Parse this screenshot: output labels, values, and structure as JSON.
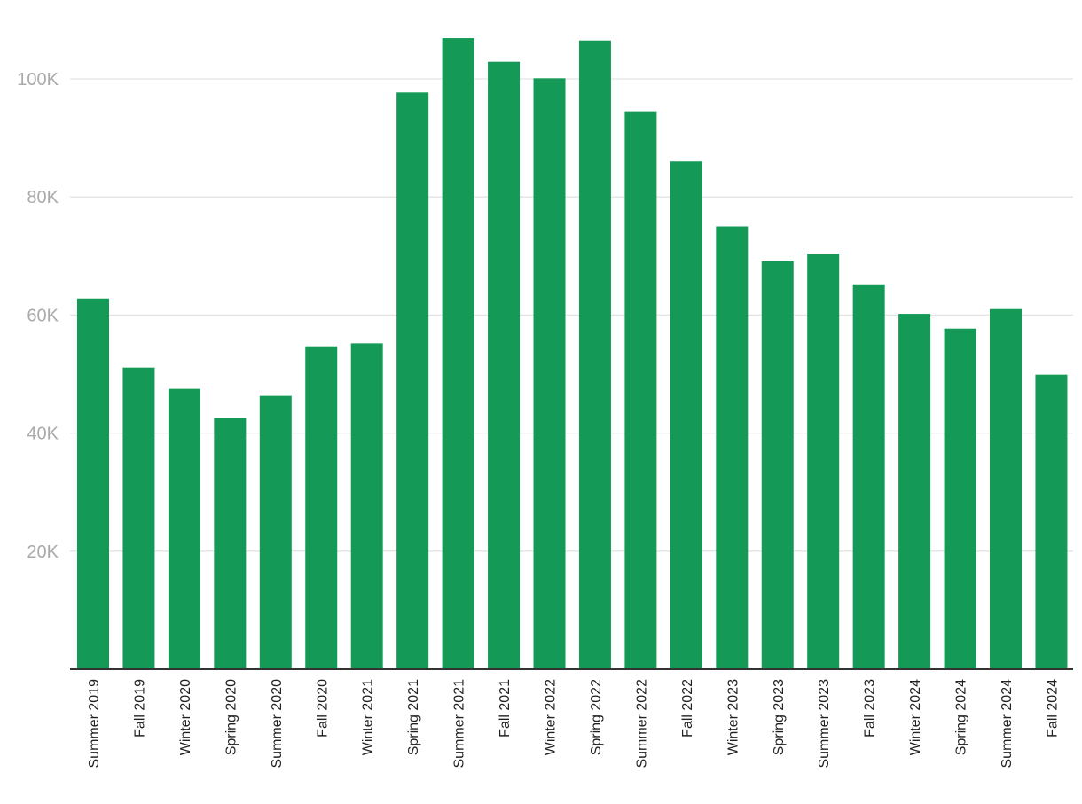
{
  "chart_data": {
    "type": "bar",
    "categories": [
      "Summer 2019",
      "Fall 2019",
      "Winter 2020",
      "Spring 2020",
      "Summer 2020",
      "Fall 2020",
      "Winter 2021",
      "Spring 2021",
      "Summer 2021",
      "Fall 2021",
      "Winter 2022",
      "Spring 2022",
      "Summer 2022",
      "Fall 2022",
      "Winter 2023",
      "Spring 2023",
      "Summer 2023",
      "Fall 2023",
      "Winter 2024",
      "Spring 2024",
      "Summer 2024",
      "Fall 2024"
    ],
    "values": [
      62800,
      51100,
      47500,
      42500,
      46300,
      54700,
      55200,
      97700,
      106900,
      102900,
      100100,
      106500,
      94500,
      86000,
      75000,
      69100,
      70400,
      65200,
      60200,
      57700,
      61000,
      49900
    ],
    "title": "",
    "xlabel": "",
    "ylabel": "",
    "ylim": [
      0,
      110000
    ],
    "yticks": [
      20000,
      40000,
      60000,
      80000,
      100000
    ],
    "ytick_labels": [
      "20K",
      "40K",
      "60K",
      "80K",
      "100K"
    ],
    "grid": true,
    "legend": "none",
    "colors": {
      "bar": "#159957",
      "grid": "#e3e3e3",
      "axis": "#333333",
      "ytick_text": "#aaaaaa",
      "xtick_text": "#222222"
    }
  }
}
